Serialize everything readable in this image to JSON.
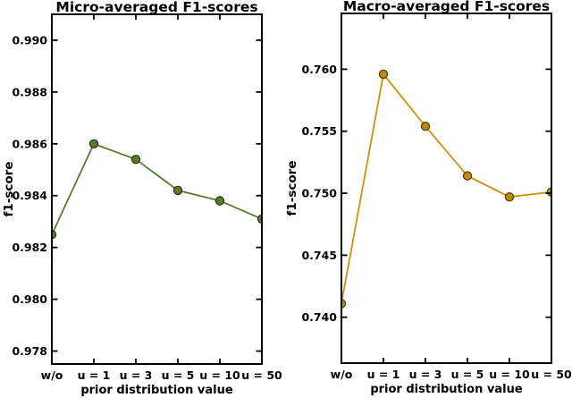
{
  "figure": {
    "background": "#ffffff",
    "axis_color": "#000000",
    "text_color": "#000000"
  },
  "chart_data": [
    {
      "type": "line",
      "title": "Micro-averaged F1-scores",
      "xlabel": "prior distribution value",
      "ylabel": "f1-score",
      "categories": [
        "w/o",
        "u = 1",
        "u = 3",
        "u = 5",
        "u = 10",
        "u = 50"
      ],
      "values": [
        0.9825,
        0.986,
        0.9854,
        0.9842,
        0.9838,
        0.9831
      ],
      "yticks": [
        0.978,
        0.98,
        0.982,
        0.984,
        0.986,
        0.988,
        0.99
      ],
      "ytick_labels": [
        "0.978",
        "0.980",
        "0.982",
        "0.984",
        "0.986",
        "0.988",
        "0.990"
      ],
      "ylim": [
        0.9775,
        0.991
      ],
      "grid": false,
      "legend": null,
      "line_color": "#5c7a2e",
      "marker_fill": "#5c7a2e",
      "marker_edge": "#26330f"
    },
    {
      "type": "line",
      "title": "Macro-averaged F1-scores",
      "xlabel": "prior distribution value",
      "ylabel": "f1-score",
      "categories": [
        "w/o",
        "u = 1",
        "u = 3",
        "u = 5",
        "u = 10",
        "u = 50"
      ],
      "values": [
        0.7411,
        0.7596,
        0.7554,
        0.7514,
        0.7497,
        0.7501
      ],
      "yticks": [
        0.74,
        0.745,
        0.75,
        0.755,
        0.76
      ],
      "ytick_labels": [
        "0.740",
        "0.745",
        "0.750",
        "0.755",
        "0.760"
      ],
      "ylim": [
        0.7363,
        0.7645
      ],
      "grid": false,
      "legend": null,
      "line_color": "#cc920e",
      "marker_fill": "#bd8a10",
      "marker_edge": "#4a3a08"
    }
  ]
}
